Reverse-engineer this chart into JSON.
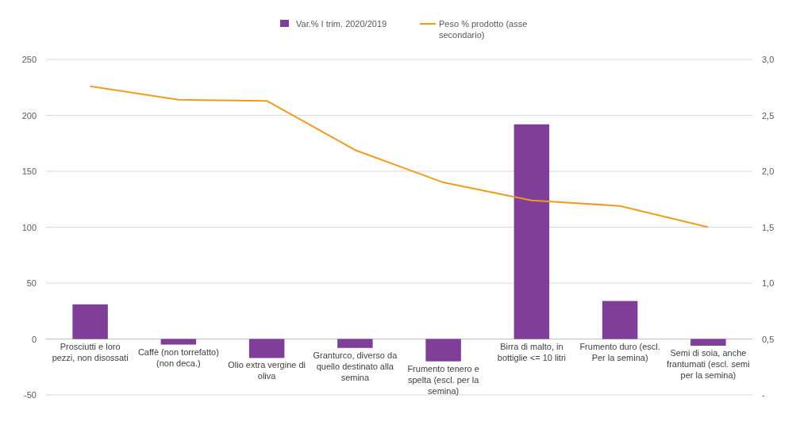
{
  "chart_data": {
    "type": "bar",
    "categories": [
      "Prosciutti e loro pezzi, non disossati",
      "Caffè (non torrefatto) (non deca.)",
      "Olio extra vergine di oliva",
      "Granturco, diverso da quello destinato alla semina",
      "Frumento tenero e spelta (escl. per la semina)",
      "Birra di malto, in bottiglie <= 10 litri",
      "Frumento duro (escl. Per la semina)",
      "Semi di soia, anche frantumati (escl. semi per la semina)"
    ],
    "series": [
      {
        "name": "Var.% I trim. 2020/2019",
        "color": "#7f3f98",
        "values": [
          31,
          -5,
          -17,
          -8,
          -20,
          192,
          34,
          -6
        ]
      },
      {
        "name": "Peso % prodotto (asse secondario)",
        "type": "line",
        "axis": "y2",
        "color": "#f39a1e",
        "values": [
          2.76,
          2.64,
          2.63,
          2.19,
          1.9,
          1.74,
          1.69,
          1.5
        ]
      }
    ],
    "ylim": [
      -50,
      250
    ],
    "yticks": [
      -50,
      0,
      50,
      100,
      150,
      200,
      250
    ],
    "y2lim": [
      0,
      3
    ],
    "y2ticks": [
      {
        "value": 0,
        "label": "-"
      },
      {
        "value": 0.5,
        "label": "0,5"
      },
      {
        "value": 1,
        "label": "1,0"
      },
      {
        "value": 1.5,
        "label": "1,5"
      },
      {
        "value": 2,
        "label": "2,0"
      },
      {
        "value": 2.5,
        "label": "2,5"
      },
      {
        "value": 3,
        "label": "3,0"
      }
    ],
    "grid": "y",
    "legend": "top",
    "marker": "none"
  }
}
